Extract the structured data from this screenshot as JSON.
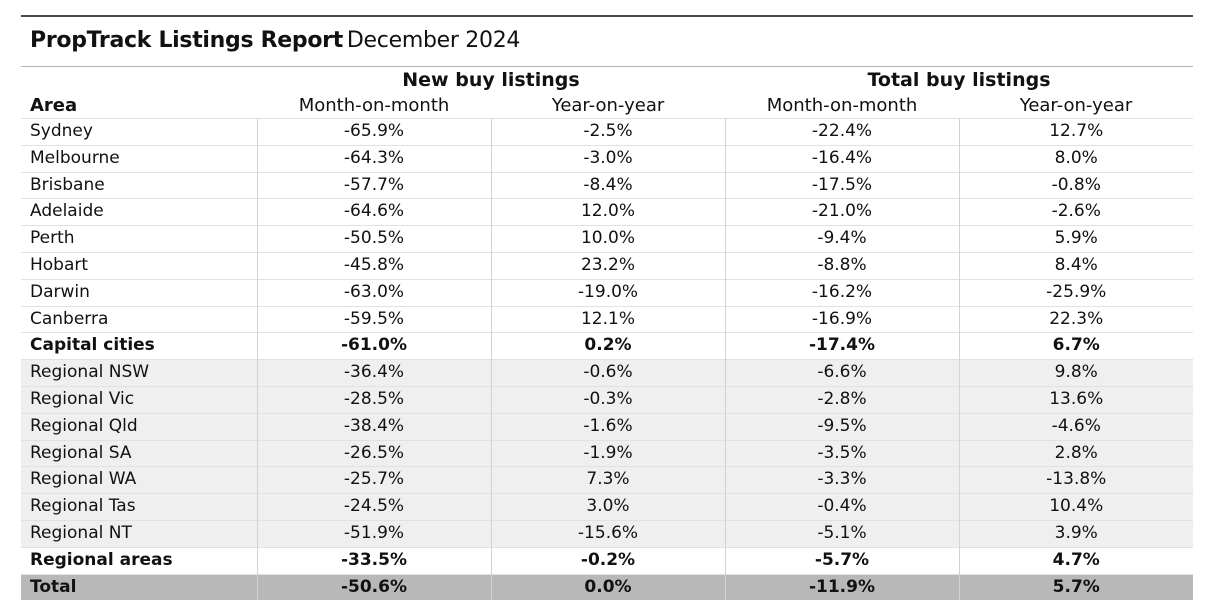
{
  "title": {
    "brand": "PropTrack Listings Report",
    "date": "December 2024"
  },
  "colors": {
    "rule": "#4a4a4a",
    "regional_shade": "#efefef",
    "total_shade": "#b8b8b8"
  },
  "chart_data": {
    "type": "table",
    "title": "PropTrack Listings Report December 2024",
    "groups": [
      "New buy listings",
      "Total  buy listings"
    ],
    "columns": [
      "Area",
      "Month-on-month",
      "Year-on-year",
      "Month-on-month",
      "Year-on-year"
    ],
    "rows": [
      {
        "area": "Sydney",
        "values": [
          "-65.9%",
          "-2.5%",
          "-22.4%",
          "12.7%"
        ],
        "style": "plain"
      },
      {
        "area": "Melbourne",
        "values": [
          "-64.3%",
          "-3.0%",
          "-16.4%",
          "8.0%"
        ],
        "style": "plain"
      },
      {
        "area": "Brisbane",
        "values": [
          "-57.7%",
          "-8.4%",
          "-17.5%",
          "-0.8%"
        ],
        "style": "plain"
      },
      {
        "area": "Adelaide",
        "values": [
          "-64.6%",
          "12.0%",
          "-21.0%",
          "-2.6%"
        ],
        "style": "plain"
      },
      {
        "area": "Perth",
        "values": [
          "-50.5%",
          "10.0%",
          "-9.4%",
          "5.9%"
        ],
        "style": "plain"
      },
      {
        "area": "Hobart",
        "values": [
          "-45.8%",
          "23.2%",
          "-8.8%",
          "8.4%"
        ],
        "style": "plain"
      },
      {
        "area": "Darwin",
        "values": [
          "-63.0%",
          "-19.0%",
          "-16.2%",
          "-25.9%"
        ],
        "style": "plain"
      },
      {
        "area": "Canberra",
        "values": [
          "-59.5%",
          "12.1%",
          "-16.9%",
          "22.3%"
        ],
        "style": "plain"
      },
      {
        "area": "Capital cities",
        "values": [
          "-61.0%",
          "0.2%",
          "-17.4%",
          "6.7%"
        ],
        "style": "sub"
      },
      {
        "area": "Regional NSW",
        "values": [
          "-36.4%",
          "-0.6%",
          "-6.6%",
          "9.8%"
        ],
        "style": "shade"
      },
      {
        "area": "Regional Vic",
        "values": [
          "-28.5%",
          "-0.3%",
          "-2.8%",
          "13.6%"
        ],
        "style": "shade"
      },
      {
        "area": "Regional Qld",
        "values": [
          "-38.4%",
          "-1.6%",
          "-9.5%",
          "-4.6%"
        ],
        "style": "shade"
      },
      {
        "area": "Regional SA",
        "values": [
          "-26.5%",
          "-1.9%",
          "-3.5%",
          "2.8%"
        ],
        "style": "shade"
      },
      {
        "area": "Regional WA",
        "values": [
          "-25.7%",
          "7.3%",
          "-3.3%",
          "-13.8%"
        ],
        "style": "shade"
      },
      {
        "area": "Regional Tas",
        "values": [
          "-24.5%",
          "3.0%",
          "-0.4%",
          "10.4%"
        ],
        "style": "shade"
      },
      {
        "area": "Regional NT",
        "values": [
          "-51.9%",
          "-15.6%",
          "-5.1%",
          "3.9%"
        ],
        "style": "shade"
      },
      {
        "area": "Regional areas",
        "values": [
          "-33.5%",
          "-0.2%",
          "-5.7%",
          "4.7%"
        ],
        "style": "sub"
      },
      {
        "area": "Total",
        "values": [
          "-50.6%",
          "0.0%",
          "-11.9%",
          "5.7%"
        ],
        "style": "total"
      }
    ]
  }
}
